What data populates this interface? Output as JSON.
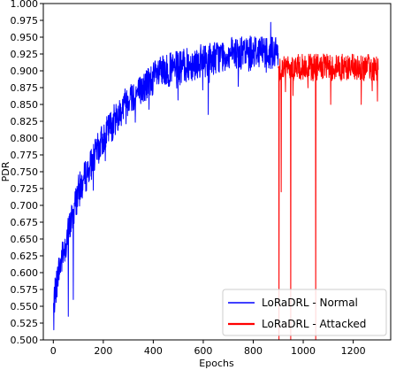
{
  "chart_data": {
    "type": "line",
    "title": "",
    "xlabel": "Epochs",
    "ylabel": "PDR",
    "xlim": [
      -40,
      1350
    ],
    "ylim": [
      0.5,
      1.0
    ],
    "x_ticks": [
      0,
      200,
      400,
      600,
      800,
      1000,
      1200
    ],
    "y_ticks": [
      0.5,
      0.525,
      0.55,
      0.575,
      0.6,
      0.625,
      0.65,
      0.675,
      0.7,
      0.725,
      0.75,
      0.775,
      0.8,
      0.825,
      0.85,
      0.875,
      0.9,
      0.925,
      0.95,
      0.975,
      1.0
    ],
    "y_tick_labels": [
      "0.500",
      "0.525",
      "0.550",
      "0.575",
      "0.600",
      "0.625",
      "0.650",
      "0.675",
      "0.700",
      "0.725",
      "0.750",
      "0.775",
      "0.800",
      "0.825",
      "0.850",
      "0.875",
      "0.900",
      "0.925",
      "0.950",
      "0.975",
      "1.000"
    ],
    "grid": false,
    "legend_position": "bottom-right",
    "series": [
      {
        "name": "LoRaDRL - Normal",
        "color": "#0000ff",
        "x_range": [
          0,
          900
        ],
        "anchor_x": [
          0,
          20,
          40,
          60,
          100,
          150,
          200,
          250,
          300,
          350,
          400,
          450,
          500,
          550,
          600,
          650,
          700,
          750,
          800,
          850,
          900
        ],
        "anchor_y": [
          0.55,
          0.6,
          0.63,
          0.66,
          0.72,
          0.76,
          0.8,
          0.83,
          0.86,
          0.87,
          0.89,
          0.9,
          0.905,
          0.91,
          0.915,
          0.92,
          0.925,
          0.925,
          0.93,
          0.93,
          0.925
        ],
        "noise": 0.025,
        "dips": [
          {
            "x": 2,
            "y": 0.515
          },
          {
            "x": 60,
            "y": 0.535
          },
          {
            "x": 80,
            "y": 0.56
          },
          {
            "x": 620,
            "y": 0.835
          },
          {
            "x": 870,
            "y": 0.972
          }
        ]
      },
      {
        "name": "LoRaDRL - Attacked",
        "color": "#ff0000",
        "x_range": [
          900,
          1300
        ],
        "anchor_x": [
          900,
          1000,
          1100,
          1200,
          1300
        ],
        "anchor_y": [
          0.905,
          0.905,
          0.905,
          0.905,
          0.905
        ],
        "noise": 0.02,
        "dips": [
          {
            "x": 903,
            "y": 0.5
          },
          {
            "x": 912,
            "y": 0.72
          },
          {
            "x": 950,
            "y": 0.5
          },
          {
            "x": 1050,
            "y": 0.5
          },
          {
            "x": 1110,
            "y": 0.85
          },
          {
            "x": 1232,
            "y": 0.85
          },
          {
            "x": 1297,
            "y": 0.855
          }
        ]
      }
    ]
  }
}
